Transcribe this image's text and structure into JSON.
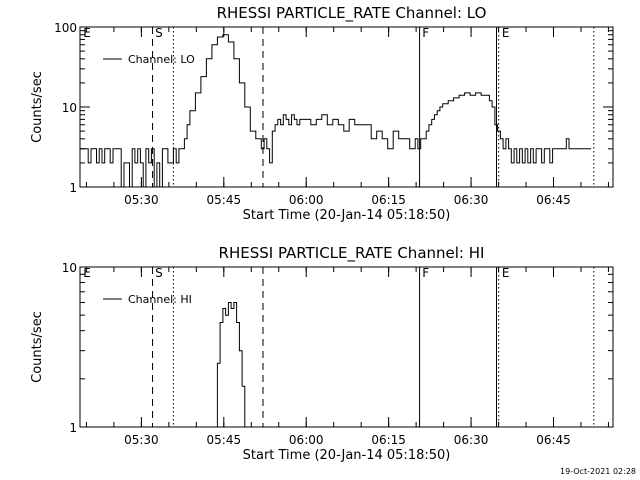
{
  "footer": {
    "timestamp": "19-Oct-2021 02:28"
  },
  "chart_data": [
    {
      "type": "line",
      "title": "RHESSI PARTICLE_RATE Channel: LO",
      "xlabel": "Start Time (20-Jan-14 05:18:50)",
      "ylabel": "Counts/sec",
      "yscale": "log",
      "ylim": [
        1,
        100
      ],
      "xlim_minutes": [
        0,
        97
      ],
      "y_ticks": [
        {
          "value": 1,
          "label": "1"
        },
        {
          "value": 10,
          "label": "10"
        },
        {
          "value": 100,
          "label": "100"
        }
      ],
      "x_ticks": [
        {
          "minute": 11.17,
          "label": "05:30"
        },
        {
          "minute": 26.17,
          "label": "05:45"
        },
        {
          "minute": 41.17,
          "label": "06:00"
        },
        {
          "minute": 56.17,
          "label": "06:15"
        },
        {
          "minute": 71.17,
          "label": "06:30"
        },
        {
          "minute": 86.17,
          "label": "06:45"
        }
      ],
      "legend": {
        "label": "Channel: LO",
        "position": "top-left"
      },
      "markers": [
        {
          "minute": 13.2,
          "style": "dashed",
          "label": ""
        },
        {
          "minute": 17.0,
          "style": "dotted",
          "label": ""
        },
        {
          "minute": 33.3,
          "style": "dashed",
          "label": ""
        },
        {
          "minute": 61.8,
          "style": "solid",
          "label": ""
        },
        {
          "minute": 75.8,
          "style": "solid",
          "label": ""
        },
        {
          "minute": 76.2,
          "style": "dotted",
          "label": ""
        },
        {
          "minute": 93.5,
          "style": "dotted",
          "label": ""
        }
      ],
      "flags": [
        {
          "minute": 0.4,
          "label": "E"
        },
        {
          "minute": 13.5,
          "label": "S"
        },
        {
          "minute": 62.1,
          "label": "F"
        },
        {
          "minute": 76.6,
          "label": "E"
        }
      ],
      "series": [
        {
          "x": [
            0,
            1,
            1.5,
            2,
            2.5,
            3,
            3.5,
            4,
            4.5,
            5,
            5.5,
            6,
            6.5,
            7,
            7.5,
            8,
            8.5,
            9,
            9.5,
            10,
            10.5,
            11,
            11.5,
            12,
            12.5,
            13,
            13.5,
            14,
            14.5,
            15,
            15.5,
            16,
            16.5,
            17,
            17.5,
            18,
            18.5,
            19,
            19.5,
            20,
            21,
            22,
            23,
            24,
            25,
            26,
            27,
            28,
            29,
            30,
            31,
            32,
            33,
            33.5,
            34,
            34.5,
            35,
            35.5,
            36,
            36.5,
            37,
            37.5,
            38,
            38.5,
            39,
            39.5,
            40,
            41,
            42,
            43,
            44,
            45,
            46,
            47,
            48,
            49,
            50,
            51,
            52,
            53,
            54,
            55,
            56,
            57,
            58,
            59,
            60,
            61,
            61.5,
            62,
            62.5,
            63,
            63.5,
            64,
            64.5,
            65,
            65.5,
            66,
            67,
            68,
            69,
            70,
            71,
            72,
            73,
            74,
            74.5,
            75,
            75.5,
            76,
            76.5,
            77,
            77.5,
            78,
            78.5,
            79,
            79.5,
            80,
            80.5,
            81,
            81.5,
            82,
            82.5,
            83,
            83.5,
            84,
            84.5,
            85,
            85.5,
            86,
            86.5,
            87,
            87.5,
            88,
            88.5,
            89,
            89.5,
            90,
            90.5,
            91,
            92,
            93
          ],
          "y": [
            3,
            3,
            2,
            3,
            3,
            2,
            3,
            2,
            3,
            3,
            2,
            3,
            3,
            3,
            1,
            2,
            2,
            1,
            3,
            2,
            3,
            2,
            1,
            3,
            2,
            3,
            1,
            2,
            1,
            3,
            3,
            2,
            2,
            3,
            2,
            3,
            3,
            4,
            6,
            9,
            15,
            24,
            40,
            60,
            75,
            80,
            65,
            40,
            20,
            10,
            5,
            4,
            3,
            4,
            3,
            2,
            5,
            6,
            7,
            6,
            8,
            7,
            6,
            8,
            7,
            6,
            7,
            7,
            6,
            7,
            8,
            6,
            7,
            6,
            5,
            7,
            6,
            6,
            6,
            4,
            5,
            4,
            3,
            5,
            4,
            4,
            3,
            4,
            3,
            4,
            4,
            5,
            6,
            7,
            8,
            9,
            10,
            11,
            12,
            13,
            14,
            15,
            14,
            15,
            14,
            14,
            12,
            10,
            6,
            5,
            4,
            3,
            4,
            3,
            2,
            3,
            2,
            3,
            2,
            3,
            2,
            3,
            2,
            3,
            3,
            2,
            3,
            3,
            2,
            3,
            3,
            3,
            3,
            3,
            4,
            3,
            3,
            3,
            3,
            3,
            3,
            3
          ],
          "name": ""
        }
      ]
    },
    {
      "type": "line",
      "title": "RHESSI PARTICLE_RATE Channel: HI",
      "xlabel": "Start Time (20-Jan-14 05:18:50)",
      "ylabel": "Counts/sec",
      "yscale": "log",
      "ylim": [
        1,
        10
      ],
      "xlim_minutes": [
        0,
        97
      ],
      "y_ticks": [
        {
          "value": 1,
          "label": "1"
        },
        {
          "value": 10,
          "label": "10"
        }
      ],
      "x_ticks": [
        {
          "minute": 11.17,
          "label": "05:30"
        },
        {
          "minute": 26.17,
          "label": "05:45"
        },
        {
          "minute": 41.17,
          "label": "06:00"
        },
        {
          "minute": 56.17,
          "label": "06:15"
        },
        {
          "minute": 71.17,
          "label": "06:30"
        },
        {
          "minute": 86.17,
          "label": "06:45"
        }
      ],
      "legend": {
        "label": "Channel: HI",
        "position": "top-left"
      },
      "markers": [
        {
          "minute": 13.2,
          "style": "dashed",
          "label": ""
        },
        {
          "minute": 17.0,
          "style": "dotted",
          "label": ""
        },
        {
          "minute": 33.3,
          "style": "dashed",
          "label": ""
        },
        {
          "minute": 61.8,
          "style": "solid",
          "label": ""
        },
        {
          "minute": 75.8,
          "style": "solid",
          "label": ""
        },
        {
          "minute": 76.2,
          "style": "dotted",
          "label": ""
        },
        {
          "minute": 93.5,
          "style": "dotted",
          "label": ""
        }
      ],
      "flags": [
        {
          "minute": 0.4,
          "label": "E"
        },
        {
          "minute": 13.5,
          "label": "S"
        },
        {
          "minute": 62.1,
          "label": "F"
        },
        {
          "minute": 76.6,
          "label": "E"
        }
      ],
      "series": [
        {
          "x": [
            24.5,
            25,
            25.5,
            26,
            26.5,
            27,
            27.5,
            28,
            28.5,
            29,
            29.5,
            30
          ],
          "y": [
            1,
            2.5,
            4.5,
            5.5,
            5,
            6,
            5.5,
            6,
            4.5,
            3,
            1.8,
            1
          ],
          "name": ""
        }
      ]
    }
  ]
}
